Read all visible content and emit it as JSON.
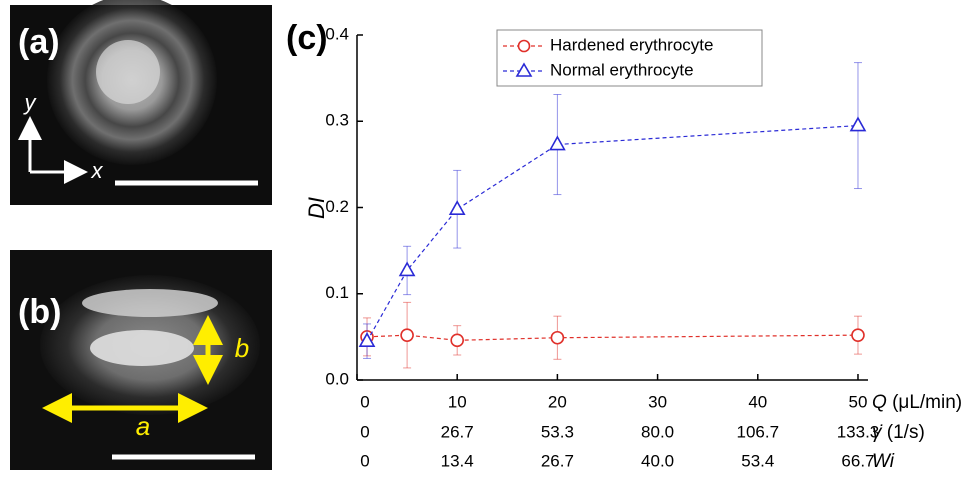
{
  "panels": {
    "a": {
      "label": "(a)",
      "axis_y": "y",
      "axis_x": "x"
    },
    "b": {
      "label": "(b)",
      "width_symbol": "a",
      "height_symbol": "b"
    }
  },
  "chart_data": {
    "type": "line",
    "panel_label": "(c)",
    "y_label": "DI",
    "x_label_symbol": "Q",
    "x_label_unit": "(μL/min)",
    "xlim": [
      0,
      51
    ],
    "xticks": [
      0,
      10,
      20,
      30,
      40,
      50
    ],
    "ylim": [
      0,
      0.4
    ],
    "yticks": [
      {
        "value": 0,
        "label": "0.0"
      },
      0.1,
      0.2,
      0.3,
      0.4
    ],
    "secondary_axes": [
      {
        "symbol": "γ̇",
        "unit": "(1/s)",
        "ticks": [
          0,
          26.7,
          53.3,
          {
            "value": 80,
            "label": "80.0"
          },
          106.7,
          133.3
        ]
      },
      {
        "symbol": "Wi",
        "ticks": [
          0,
          13.4,
          26.7,
          {
            "value": 40,
            "label": "40.0"
          },
          53.4,
          66.7
        ]
      }
    ],
    "x": [
      1,
      5,
      10,
      20,
      50
    ],
    "series": [
      {
        "name": "Hardened erythrocyte",
        "color": "#e0302a",
        "marker": "circle",
        "values": [
          0.05,
          0.052,
          0.046,
          0.049,
          0.052
        ],
        "errors": [
          0.022,
          0.038,
          0.017,
          0.025,
          0.022
        ]
      },
      {
        "name": "Normal erythrocyte",
        "color": "#2a2ad6",
        "marker": "triangle",
        "values": [
          0.045,
          0.127,
          0.198,
          0.273,
          0.295
        ],
        "errors": [
          0.02,
          0.028,
          0.045,
          0.058,
          0.073
        ]
      }
    ],
    "legend": "top"
  }
}
